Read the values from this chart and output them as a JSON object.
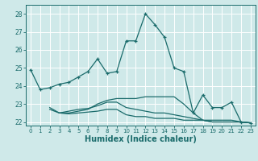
{
  "bg_color": "#cfe9e9",
  "grid_color": "#ffffff",
  "line_color": "#1a6b6b",
  "xlabel": "Humidex (Indice chaleur)",
  "xlim": [
    -0.5,
    23.5
  ],
  "ylim": [
    21.8,
    28.5
  ],
  "yticks": [
    22,
    23,
    24,
    25,
    26,
    27,
    28
  ],
  "xticks": [
    0,
    1,
    2,
    3,
    4,
    5,
    6,
    7,
    8,
    9,
    10,
    11,
    12,
    13,
    14,
    15,
    16,
    17,
    18,
    19,
    20,
    21,
    22,
    23
  ],
  "series": [
    {
      "x": [
        0,
        1,
        2,
        3,
        4,
        5,
        6,
        7,
        8,
        9,
        10,
        11,
        12,
        13,
        14,
        15,
        16,
        17,
        18,
        19,
        20,
        21,
        22,
        23
      ],
      "y": [
        24.9,
        23.8,
        23.9,
        24.1,
        24.2,
        24.5,
        24.8,
        25.5,
        24.7,
        24.8,
        26.5,
        26.5,
        28.0,
        27.4,
        26.7,
        25.0,
        24.8,
        22.5,
        23.5,
        22.8,
        22.8,
        23.1,
        22.0,
        21.95
      ],
      "marker": true
    },
    {
      "x": [
        2,
        3,
        4,
        5,
        6,
        7,
        8,
        9,
        10,
        11,
        12,
        13,
        14,
        15,
        16,
        17,
        18,
        19,
        20,
        21,
        22,
        23
      ],
      "y": [
        22.8,
        22.5,
        22.5,
        22.6,
        22.7,
        23.0,
        23.2,
        23.3,
        23.3,
        23.3,
        23.4,
        23.4,
        23.4,
        23.4,
        23.0,
        22.5,
        22.1,
        22.1,
        22.1,
        22.1,
        22.0,
        21.95
      ],
      "marker": false
    },
    {
      "x": [
        2,
        3,
        4,
        5,
        6,
        7,
        8,
        9,
        10,
        11,
        12,
        13,
        14,
        15,
        16,
        17,
        18,
        19,
        20,
        21,
        22,
        23
      ],
      "y": [
        22.7,
        22.5,
        22.6,
        22.7,
        22.75,
        22.9,
        23.1,
        23.1,
        22.8,
        22.7,
        22.6,
        22.5,
        22.5,
        22.4,
        22.3,
        22.2,
        22.1,
        22.0,
        22.0,
        22.0,
        22.0,
        21.95
      ],
      "marker": false
    },
    {
      "x": [
        3,
        4,
        5,
        6,
        7,
        8,
        9,
        10,
        11,
        12,
        13,
        14,
        15,
        16,
        17,
        18,
        19,
        20,
        21,
        22,
        23
      ],
      "y": [
        22.5,
        22.45,
        22.5,
        22.55,
        22.6,
        22.7,
        22.7,
        22.4,
        22.3,
        22.3,
        22.2,
        22.2,
        22.2,
        22.1,
        22.1,
        22.1,
        22.0,
        22.0,
        22.0,
        22.0,
        21.95
      ],
      "marker": false
    }
  ]
}
